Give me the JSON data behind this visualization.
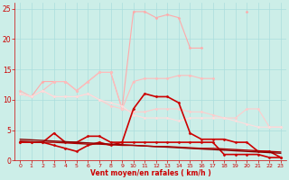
{
  "x": [
    0,
    1,
    2,
    3,
    4,
    5,
    6,
    7,
    8,
    9,
    10,
    11,
    12,
    13,
    14,
    15,
    16,
    17,
    18,
    19,
    20,
    21,
    22,
    23
  ],
  "series": [
    {
      "name": "light_salmon_rafales",
      "color": "#ffaaaa",
      "linewidth": 0.8,
      "marker": "D",
      "markersize": 1.5,
      "values": [
        11.0,
        10.5,
        13.0,
        13.0,
        13.0,
        11.5,
        13.0,
        14.5,
        14.5,
        8.5,
        24.5,
        24.5,
        23.5,
        24.0,
        23.5,
        18.5,
        18.5,
        null,
        null,
        null,
        24.5,
        null,
        null,
        null
      ]
    },
    {
      "name": "salmon_upper_flat",
      "color": "#ffbbbb",
      "linewidth": 0.8,
      "marker": "D",
      "markersize": 1.5,
      "values": [
        11.5,
        10.5,
        11.5,
        13.0,
        13.0,
        11.5,
        13.0,
        14.5,
        14.5,
        8.5,
        13.0,
        13.5,
        13.5,
        13.5,
        14.0,
        14.0,
        13.5,
        13.5,
        null,
        null,
        null,
        null,
        null,
        null
      ]
    },
    {
      "name": "pink_declining",
      "color": "#ffcccc",
      "linewidth": 0.8,
      "marker": "D",
      "markersize": 1.5,
      "values": [
        11.0,
        10.5,
        11.5,
        10.5,
        10.5,
        10.5,
        11.0,
        10.0,
        9.0,
        8.5,
        8.0,
        8.0,
        8.5,
        8.5,
        8.5,
        8.0,
        8.0,
        7.5,
        7.0,
        7.0,
        8.5,
        8.5,
        5.5,
        5.5
      ]
    },
    {
      "name": "light_pink_flat",
      "color": "#ffdddd",
      "linewidth": 0.8,
      "marker": "D",
      "markersize": 1.5,
      "values": [
        11.0,
        10.5,
        11.5,
        10.5,
        10.5,
        10.5,
        11.0,
        10.0,
        9.5,
        9.0,
        7.5,
        7.0,
        7.0,
        7.0,
        6.5,
        7.0,
        7.0,
        7.0,
        7.0,
        6.5,
        6.0,
        5.5,
        5.5,
        5.5
      ]
    },
    {
      "name": "dark_red_rafales",
      "color": "#cc0000",
      "linewidth": 1.2,
      "marker": "D",
      "markersize": 1.5,
      "values": [
        3.0,
        3.0,
        3.0,
        4.5,
        3.0,
        3.0,
        4.0,
        4.0,
        3.0,
        3.0,
        8.5,
        11.0,
        10.5,
        10.5,
        9.5,
        4.5,
        3.5,
        3.5,
        3.5,
        3.0,
        3.0,
        1.5,
        1.5,
        0.5
      ]
    },
    {
      "name": "dark_red_moyen",
      "color": "#cc0000",
      "linewidth": 1.2,
      "marker": "D",
      "markersize": 1.5,
      "values": [
        3.0,
        3.0,
        3.0,
        2.5,
        2.0,
        1.5,
        2.5,
        3.0,
        2.5,
        3.0,
        3.0,
        3.0,
        3.0,
        3.0,
        3.0,
        3.0,
        3.0,
        3.0,
        1.0,
        1.0,
        1.0,
        1.0,
        0.5,
        0.5
      ]
    },
    {
      "name": "dark_red_trend",
      "color": "#880000",
      "linewidth": 1.0,
      "marker": null,
      "markersize": 0,
      "values": [
        3.5,
        3.4,
        3.3,
        3.2,
        3.1,
        3.0,
        2.9,
        2.8,
        2.7,
        2.6,
        2.5,
        2.4,
        2.3,
        2.2,
        2.1,
        2.0,
        1.9,
        1.8,
        1.7,
        1.6,
        1.5,
        1.4,
        1.3,
        1.2
      ]
    },
    {
      "name": "dark_red_trend2",
      "color": "#aa0000",
      "linewidth": 1.0,
      "marker": null,
      "markersize": 0,
      "values": [
        3.2,
        3.1,
        3.0,
        3.0,
        2.9,
        2.8,
        2.7,
        2.7,
        2.6,
        2.5,
        2.5,
        2.4,
        2.3,
        2.3,
        2.2,
        2.1,
        2.0,
        2.0,
        1.9,
        1.8,
        1.7,
        1.6,
        1.5,
        1.4
      ]
    }
  ],
  "xlim": [
    -0.5,
    23.5
  ],
  "ylim": [
    0,
    26
  ],
  "yticks": [
    0,
    5,
    10,
    15,
    20,
    25
  ],
  "xticks": [
    0,
    1,
    2,
    3,
    4,
    5,
    6,
    7,
    8,
    9,
    10,
    11,
    12,
    13,
    14,
    15,
    16,
    17,
    18,
    19,
    20,
    21,
    22,
    23
  ],
  "xlabel": "Vent moyen/en rafales ( km/h )",
  "background_color": "#cceee8",
  "grid_color": "#aadddd",
  "tick_color": "#cc0000",
  "label_color": "#cc0000"
}
